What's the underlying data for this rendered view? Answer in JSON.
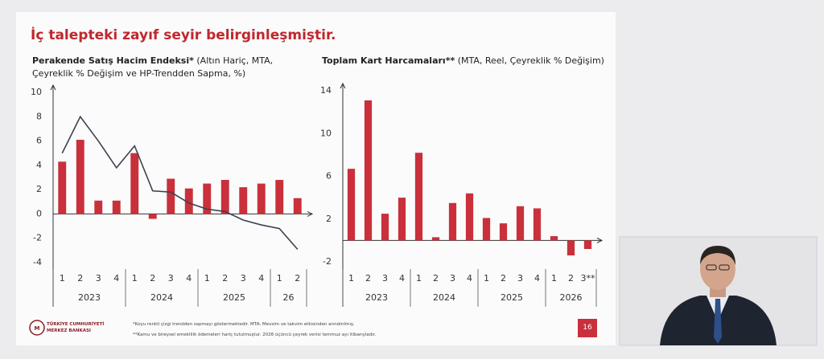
{
  "slide_title": "İç talepteki zayıf seyir belirginleşmiştir.",
  "chart_data": [
    {
      "type": "bar",
      "title": "Perakende Satış Hacim Endeksi*",
      "subtitle": "(Altın Hariç, MTA, Çeyreklik % Değişim ve HP-Trendden Sapma, %)",
      "categories": [
        "1",
        "2",
        "3",
        "4",
        "1",
        "2",
        "3",
        "4",
        "1",
        "2",
        "3",
        "4",
        "1",
        "2"
      ],
      "year_labels": [
        "2023",
        "2024",
        "2025",
        "26"
      ],
      "series": [
        {
          "type": "bar",
          "color": "#c9303b",
          "values": [
            4.3,
            6.1,
            1.1,
            1.1,
            5.0,
            -0.4,
            2.9,
            2.1,
            2.5,
            2.8,
            2.2,
            2.5,
            2.8,
            1.3
          ]
        },
        {
          "type": "line",
          "color": "#3b4250",
          "values": [
            5.0,
            8.0,
            6.0,
            3.8,
            5.6,
            1.9,
            1.8,
            0.9,
            0.4,
            0.2,
            -0.5,
            -0.9,
            -1.2,
            -2.9
          ]
        }
      ],
      "ylim": [
        -4,
        10
      ],
      "yticks": [
        -4,
        -2,
        0,
        2,
        4,
        6,
        8,
        10
      ]
    },
    {
      "type": "bar",
      "title": "Toplam Kart Harcamaları**",
      "subtitle": "(MTA, Reel, Çeyreklik % Değişim)",
      "categories": [
        "1",
        "2",
        "3",
        "4",
        "1",
        "2",
        "3",
        "4",
        "1",
        "2",
        "3",
        "4",
        "1",
        "2",
        "3**"
      ],
      "year_labels": [
        "2023",
        "2024",
        "2025",
        "2026"
      ],
      "series": [
        {
          "type": "bar",
          "color": "#c9303b",
          "values": [
            6.7,
            13.1,
            2.5,
            4.0,
            8.2,
            0.3,
            3.5,
            4.4,
            2.1,
            1.6,
            3.2,
            3.0,
            0.4,
            -1.4,
            -0.8
          ]
        }
      ],
      "ylim": [
        -2,
        14
      ],
      "yticks": [
        -2,
        2,
        6,
        10,
        14
      ]
    }
  ],
  "footnotes": [
    "*Koyu renkli çizgi trendden sapmayı göstermektedir. MTA: Mevsim ve takvim etkisinden arındırılmış.",
    "**Kamu ve bireysel emeklilik ödemeleri hariç tutulmuştur. 2026 üçüncü çeyrek verisi temmuz ayı itibarıyladır."
  ],
  "page_number": 16,
  "logo": [
    "TÜRKİYE CUMHURİYETİ",
    "MERKEZ BANKASI"
  ]
}
